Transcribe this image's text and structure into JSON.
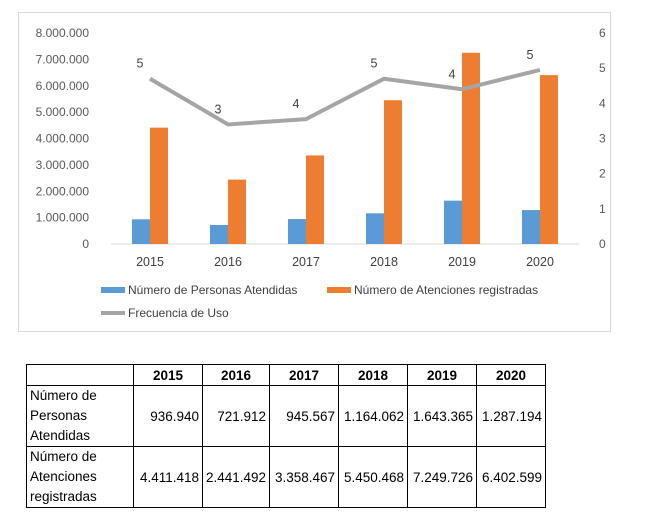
{
  "chart_data": {
    "type": "bar+line",
    "categories": [
      "2015",
      "2016",
      "2017",
      "2018",
      "2019",
      "2020"
    ],
    "series": [
      {
        "name": "Número de Personas Atendidas",
        "type": "bar",
        "axis": "left",
        "color": "#5b9bd5",
        "values": [
          936940,
          721912,
          945567,
          1164062,
          1643365,
          1287194
        ]
      },
      {
        "name": "Número de Atenciones registradas",
        "type": "bar",
        "axis": "left",
        "color": "#ed7d31",
        "values": [
          4411418,
          2441492,
          3358467,
          5450468,
          7249726,
          6402599
        ]
      },
      {
        "name": "Frecuencia de Uso",
        "type": "line",
        "axis": "right",
        "color": "#a5a5a5",
        "values": [
          4.7,
          3.4,
          3.55,
          4.7,
          4.4,
          4.95
        ],
        "labels": [
          "5",
          "3",
          "4",
          "5",
          "4",
          "5"
        ]
      }
    ],
    "left_axis": {
      "ylim": [
        0,
        8000000
      ],
      "ticks": [
        "0",
        "1.000.000",
        "2.000.000",
        "3.000.000",
        "4.000.000",
        "5.000.000",
        "6.000.000",
        "7.000.000",
        "8.000.000"
      ]
    },
    "right_axis": {
      "ylim": [
        0,
        6
      ],
      "ticks": [
        "0",
        "1",
        "2",
        "3",
        "4",
        "5",
        "6"
      ]
    },
    "legend_position": "bottom",
    "grid": false
  },
  "table": {
    "headers": [
      "",
      "2015",
      "2016",
      "2017",
      "2018",
      "2019",
      "2020"
    ],
    "rows": [
      {
        "label": [
          "Número de",
          "Personas",
          "Atendidas"
        ],
        "values": [
          "936.940",
          "721.912",
          "945.567",
          "1.164.062",
          "1.643.365",
          "1.287.194"
        ]
      },
      {
        "label": [
          "Número de",
          "Atenciones",
          "registradas"
        ],
        "values": [
          "4.411.418",
          "2.441.492",
          "3.358.467",
          "5.450.468",
          "7.249.726",
          "6.402.599"
        ]
      }
    ]
  }
}
